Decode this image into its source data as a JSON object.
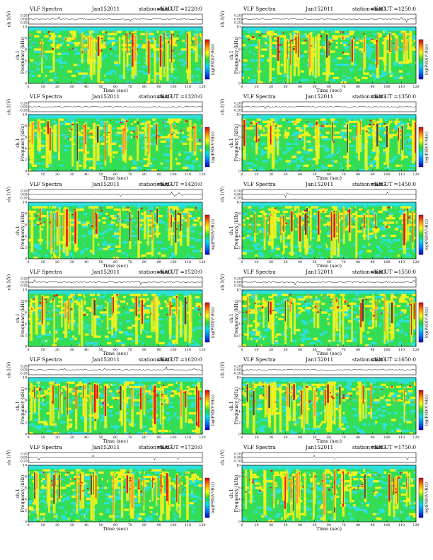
{
  "header_labels": {
    "title": "VLF Spectra",
    "date": "Jan152011",
    "station": "station=KAG",
    "start_prefix": "start  UT ="
  },
  "axes": {
    "top_ylabel": "ch.1(V)",
    "top_ticks": [
      "0.20",
      "0.00",
      "-0.20"
    ],
    "spec_ylabel_line1": "ch.1",
    "spec_ylabel_line2": "Frequency (kHz)",
    "freq_ticks": [
      "0",
      "2",
      "4",
      "6",
      "8",
      "10"
    ],
    "xlabel": "Time (sec)",
    "time_ticks": [
      "0",
      "10",
      "20",
      "30",
      "40",
      "50",
      "60",
      "70",
      "80",
      "90",
      "100",
      "110",
      "120"
    ],
    "colorbar_label": "log(PSD(V²/Hz))"
  },
  "colors": {
    "bg_cyan": "#2ee0d8",
    "green": "#33dd55",
    "yellow": "#f2f21e",
    "orange": "#ff9933",
    "red": "#e81111",
    "dark": "#444444",
    "colorbar": [
      "#d60000",
      "#ff8800",
      "#ffff00",
      "#22dd22",
      "#00ddee",
      "#0077ff",
      "#0000cc"
    ]
  },
  "chart_data": [
    {
      "type": "heatmap",
      "title": "VLF Spectra",
      "date": "Jan152011",
      "station": "station=KAG",
      "start_ut": "1220:0",
      "xlabel": "Time (sec)",
      "ylabel": "Frequency (kHz)",
      "xlim": [
        0,
        120
      ],
      "ylim": [
        0,
        10
      ],
      "top_ylim": [
        -0.2,
        0.2
      ],
      "colorbar_label": "log(PSD(V²/Hz))"
    },
    {
      "type": "heatmap",
      "title": "VLF Spectra",
      "date": "Jan152011",
      "station": "station=KAG",
      "start_ut": "1250:0",
      "xlabel": "Time (sec)",
      "ylabel": "Frequency (kHz)",
      "xlim": [
        0,
        120
      ],
      "ylim": [
        0,
        10
      ],
      "top_ylim": [
        -0.2,
        0.2
      ],
      "colorbar_label": "log(PSD(V²/Hz))"
    },
    {
      "type": "heatmap",
      "title": "VLF Spectra",
      "date": "Jan152011",
      "station": "station=KAG",
      "start_ut": "1320:0",
      "xlabel": "Time (sec)",
      "ylabel": "Frequency (kHz)",
      "xlim": [
        0,
        120
      ],
      "ylim": [
        0,
        10
      ],
      "top_ylim": [
        -0.2,
        0.2
      ],
      "colorbar_label": "log(PSD(V²/Hz))"
    },
    {
      "type": "heatmap",
      "title": "VLF Spectra",
      "date": "Jan152011",
      "station": "station=KAG",
      "start_ut": "1350:0",
      "xlabel": "Time (sec)",
      "ylabel": "Frequency (kHz)",
      "xlim": [
        0,
        120
      ],
      "ylim": [
        0,
        10
      ],
      "top_ylim": [
        -0.2,
        0.2
      ],
      "colorbar_label": "log(PSD(V²/Hz))"
    },
    {
      "type": "heatmap",
      "title": "VLF Spectra",
      "date": "Jan152011",
      "station": "station=KAG",
      "start_ut": "1420:0",
      "xlabel": "Time (sec)",
      "ylabel": "Frequency (kHz)",
      "xlim": [
        0,
        120
      ],
      "ylim": [
        0,
        10
      ],
      "top_ylim": [
        -0.2,
        0.2
      ],
      "colorbar_label": "log(PSD(V²/Hz))"
    },
    {
      "type": "heatmap",
      "title": "VLF Spectra",
      "date": "Jan152011",
      "station": "station=KAG",
      "start_ut": "1450:0",
      "xlabel": "Time (sec)",
      "ylabel": "Frequency (kHz)",
      "xlim": [
        0,
        120
      ],
      "ylim": [
        0,
        10
      ],
      "top_ylim": [
        -0.2,
        0.2
      ],
      "colorbar_label": "log(PSD(V²/Hz))"
    },
    {
      "type": "heatmap",
      "title": "VLF Spectra",
      "date": "Jan152011",
      "station": "station=KAG",
      "start_ut": "1520:0",
      "xlabel": "Time (sec)",
      "ylabel": "Frequency (kHz)",
      "xlim": [
        0,
        120
      ],
      "ylim": [
        0,
        10
      ],
      "top_ylim": [
        -0.2,
        0.2
      ],
      "colorbar_label": "log(PSD(V²/Hz))"
    },
    {
      "type": "heatmap",
      "title": "VLF Spectra",
      "date": "Jan152011",
      "station": "station=KAG",
      "start_ut": "1550:0",
      "xlabel": "Time (sec)",
      "ylabel": "Frequency (kHz)",
      "xlim": [
        0,
        120
      ],
      "ylim": [
        0,
        10
      ],
      "top_ylim": [
        -0.2,
        0.2
      ],
      "colorbar_label": "log(PSD(V²/Hz))"
    },
    {
      "type": "heatmap",
      "title": "VLF Spectra",
      "date": "Jan152011",
      "station": "station=KAG",
      "start_ut": "1620:0",
      "xlabel": "Time (sec)",
      "ylabel": "Frequency (kHz)",
      "xlim": [
        0,
        120
      ],
      "ylim": [
        0,
        10
      ],
      "top_ylim": [
        -0.2,
        0.2
      ],
      "colorbar_label": "log(PSD(V²/Hz))"
    },
    {
      "type": "heatmap",
      "title": "VLF Spectra",
      "date": "Jan152011",
      "station": "station=KAG",
      "start_ut": "1650:0",
      "xlabel": "Time (sec)",
      "ylabel": "Frequency (kHz)",
      "xlim": [
        0,
        120
      ],
      "ylim": [
        0,
        10
      ],
      "top_ylim": [
        -0.2,
        0.2
      ],
      "colorbar_label": "log(PSD(V²/Hz))"
    },
    {
      "type": "heatmap",
      "title": "VLF Spectra",
      "date": "Jan152011",
      "station": "station=KAG",
      "start_ut": "1720:0",
      "xlabel": "Time (sec)",
      "ylabel": "Frequency (kHz)",
      "xlim": [
        0,
        120
      ],
      "ylim": [
        0,
        10
      ],
      "top_ylim": [
        -0.2,
        0.2
      ],
      "colorbar_label": "log(PSD(V²/Hz))"
    },
    {
      "type": "heatmap",
      "title": "VLF Spectra",
      "date": "Jan152011",
      "station": "station=KAG",
      "start_ut": "1750:0",
      "xlabel": "Time (sec)",
      "ylabel": "Frequency (kHz)",
      "xlim": [
        0,
        120
      ],
      "ylim": [
        0,
        10
      ],
      "top_ylim": [
        -0.2,
        0.2
      ],
      "colorbar_label": "log(PSD(V²/Hz))"
    }
  ]
}
